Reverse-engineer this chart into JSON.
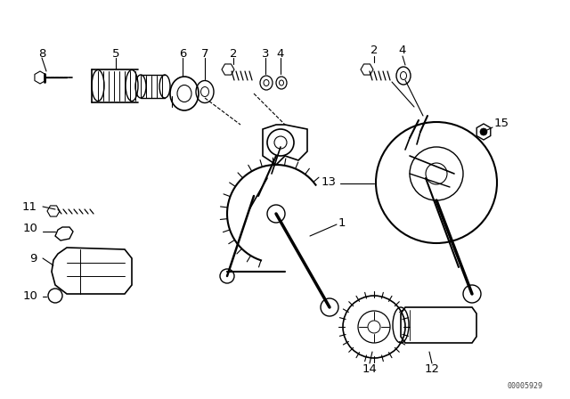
{
  "bg_color": "#ffffff",
  "watermark": "00005929",
  "figsize": [
    6.4,
    4.48
  ],
  "dpi": 100
}
